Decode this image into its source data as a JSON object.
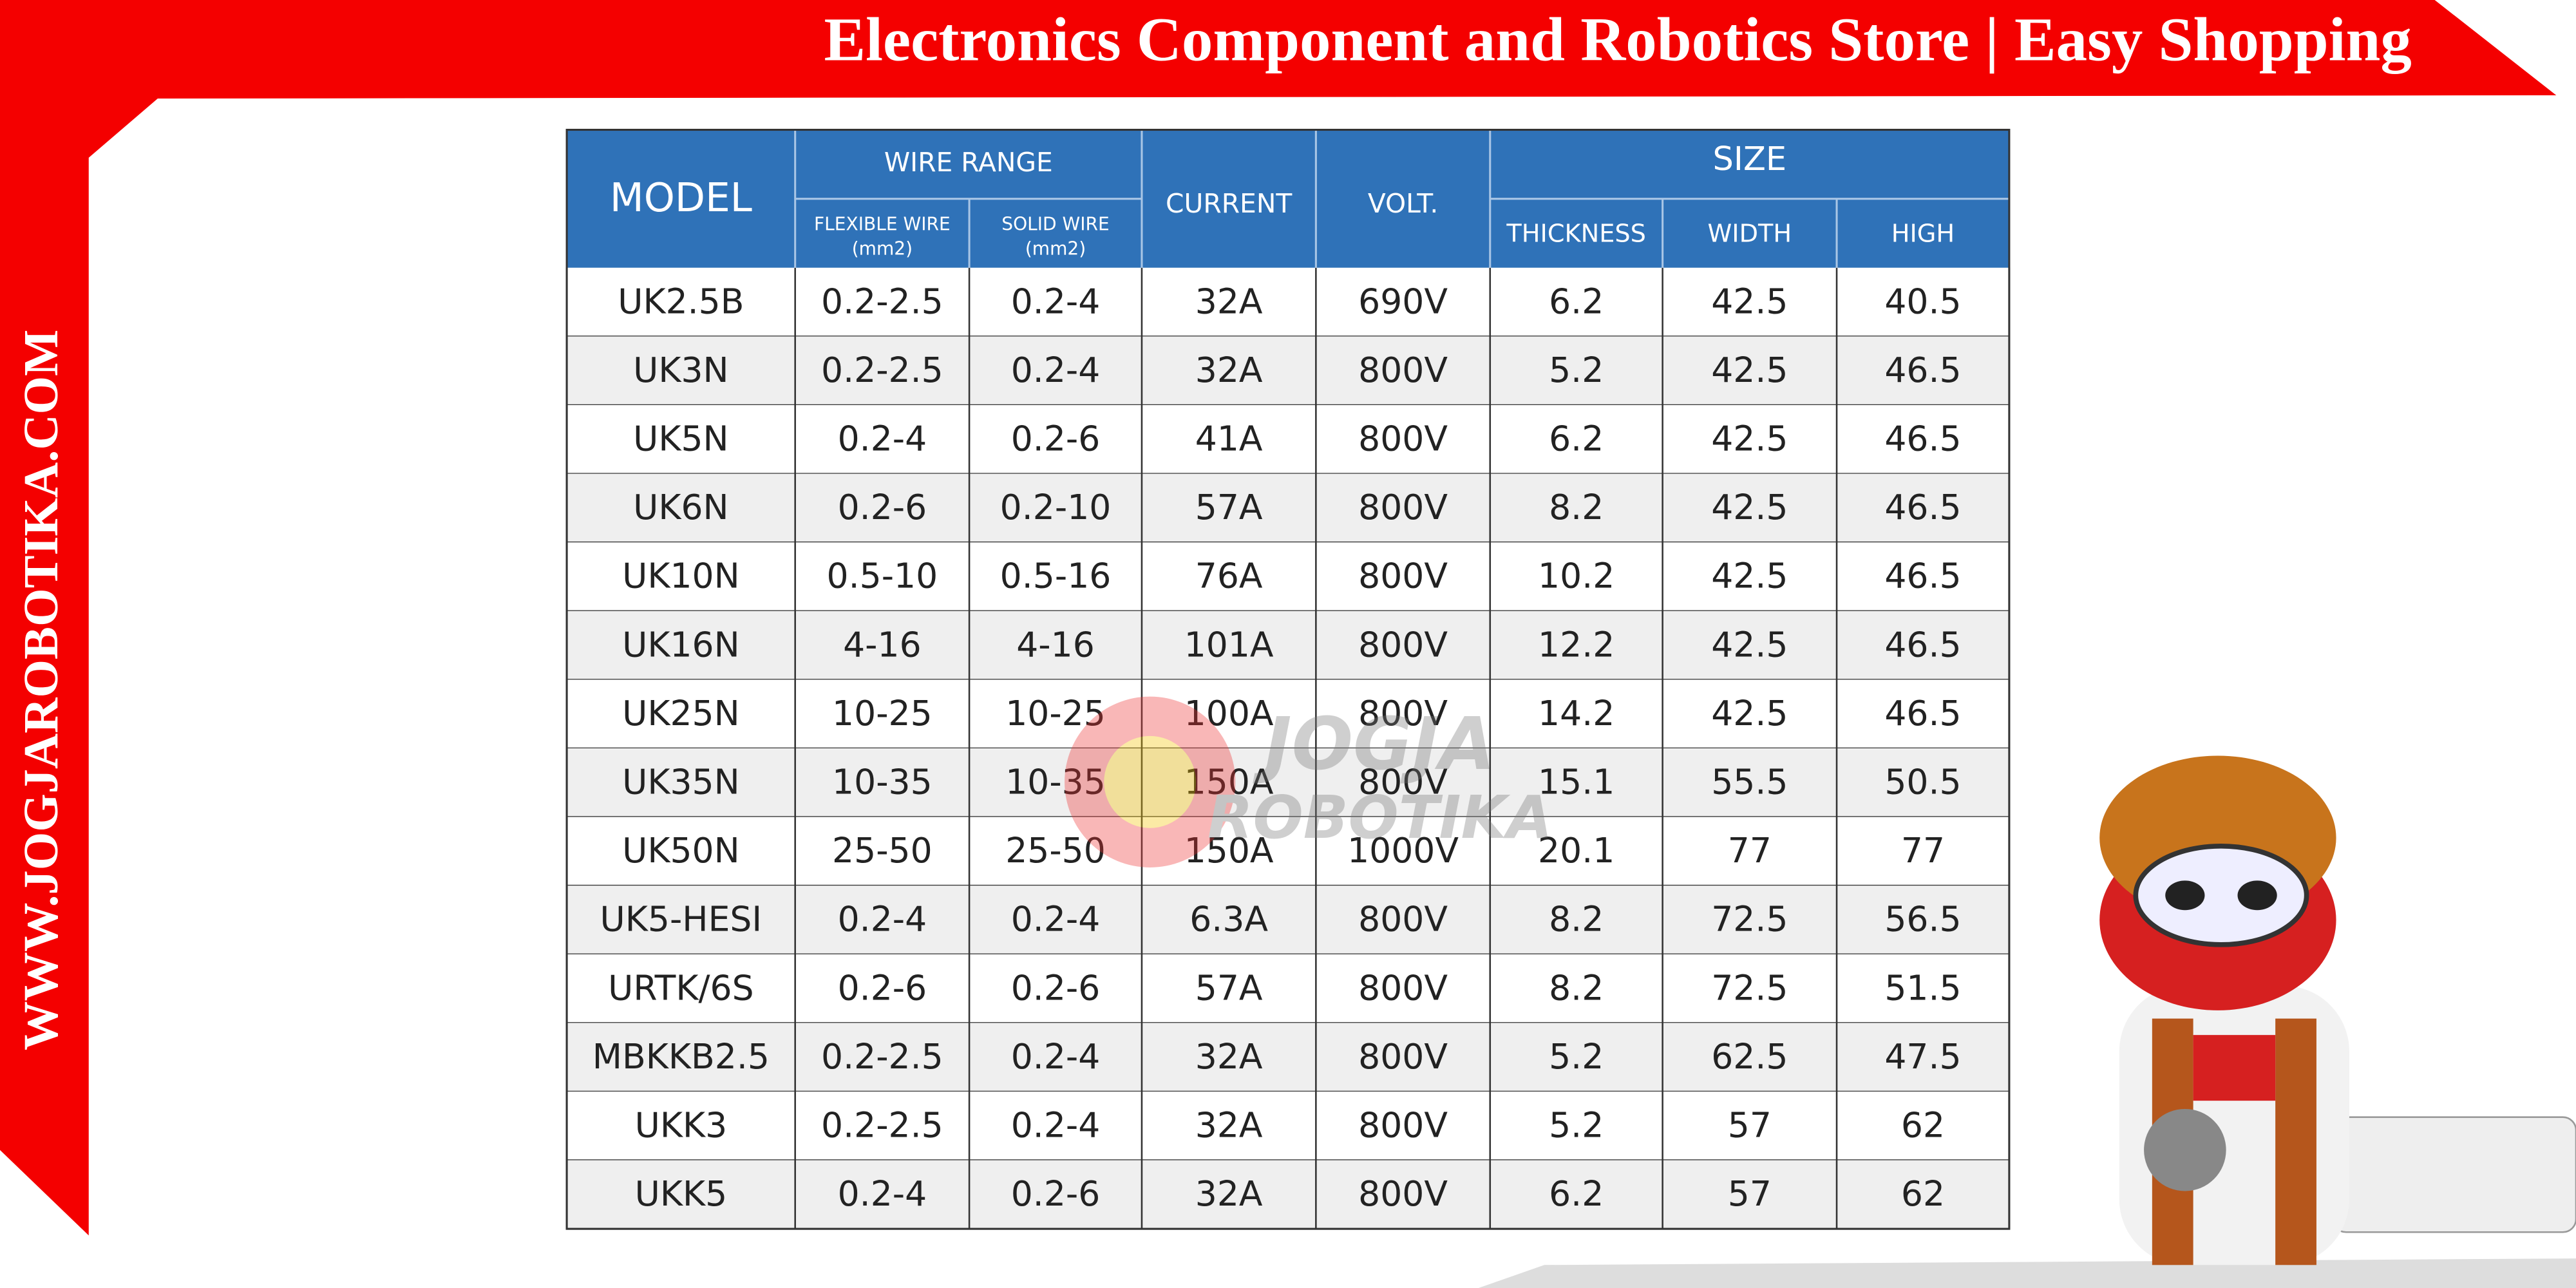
{
  "header": {
    "title": "Electronics Component and Robotics Store | Easy Shopping"
  },
  "sidebar": {
    "url": "WWW.JOGJAROBOTIKA.COM"
  },
  "watermark": {
    "line1": "JOGJA",
    "line2": "ROBOTIKA"
  },
  "table": {
    "head": {
      "model": "MODEL",
      "wire_range": "WIRE RANGE",
      "flexible_wire": "FLEXIBLE WIRE",
      "flexible_unit": "(mm2)",
      "solid_wire": "SOLID WIRE",
      "solid_unit": "(mm2)",
      "current": "CURRENT",
      "volt": "VOLT.",
      "size": "SIZE",
      "thickness": "THICKNESS",
      "width": "WIDTH",
      "high": "HIGH"
    },
    "rows": [
      [
        "UK2.5B",
        "0.2-2.5",
        "0.2-4",
        "32A",
        "690V",
        "6.2",
        "42.5",
        "40.5"
      ],
      [
        "UK3N",
        "0.2-2.5",
        "0.2-4",
        "32A",
        "800V",
        "5.2",
        "42.5",
        "46.5"
      ],
      [
        "UK5N",
        "0.2-4",
        "0.2-6",
        "41A",
        "800V",
        "6.2",
        "42.5",
        "46.5"
      ],
      [
        "UK6N",
        "0.2-6",
        "0.2-10",
        "57A",
        "800V",
        "8.2",
        "42.5",
        "46.5"
      ],
      [
        "UK10N",
        "0.5-10",
        "0.5-16",
        "76A",
        "800V",
        "10.2",
        "42.5",
        "46.5"
      ],
      [
        "UK16N",
        "4-16",
        "4-16",
        "101A",
        "800V",
        "12.2",
        "42.5",
        "46.5"
      ],
      [
        "UK25N",
        "10-25",
        "10-25",
        "100A",
        "800V",
        "14.2",
        "42.5",
        "46.5"
      ],
      [
        "UK35N",
        "10-35",
        "10-35",
        "150A",
        "800V",
        "15.1",
        "55.5",
        "50.5"
      ],
      [
        "UK50N",
        "25-50",
        "25-50",
        "150A",
        "1000V",
        "20.1",
        "77",
        "77"
      ],
      [
        "UK5-HESI",
        "0.2-4",
        "0.2-4",
        "6.3A",
        "800V",
        "8.2",
        "72.5",
        "56.5"
      ],
      [
        "URTK/6S",
        "0.2-6",
        "0.2-6",
        "57A",
        "800V",
        "8.2",
        "72.5",
        "51.5"
      ],
      [
        "MBKKB2.5",
        "0.2-2.5",
        "0.2-4",
        "32A",
        "800V",
        "5.2",
        "62.5",
        "47.5"
      ],
      [
        "UKK3",
        "0.2-2.5",
        "0.2-4",
        "32A",
        "800V",
        "5.2",
        "57",
        "62"
      ],
      [
        "UKK5",
        "0.2-4",
        "0.2-6",
        "32A",
        "800V",
        "6.2",
        "57",
        "62"
      ]
    ]
  }
}
